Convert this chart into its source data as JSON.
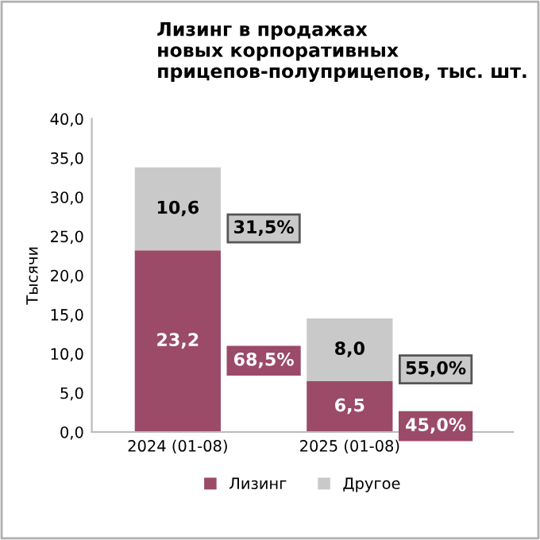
{
  "chart_data": {
    "type": "bar",
    "title": "Лизинг в продажах\nновых корпоративных\nприцепов-полуприцепов, тыс. шт.",
    "ylabel": "Тысячи",
    "categories": [
      "2024 (01-08)",
      "2025 (01-08)"
    ],
    "stacked": true,
    "series": [
      {
        "name": "Лизинг",
        "color": "#9b4a68",
        "values": [
          23.2,
          6.5
        ],
        "value_labels": [
          "23,2",
          "6,5"
        ]
      },
      {
        "name": "Другое",
        "color": "#c9c9c9",
        "values": [
          10.6,
          8.0
        ],
        "value_labels": [
          "10,6",
          "8,0"
        ]
      }
    ],
    "ylim": [
      0,
      40
    ],
    "yticks": [
      {
        "value": 0,
        "label": "0,0"
      },
      {
        "value": 5,
        "label": "5,0"
      },
      {
        "value": 10,
        "label": "10,0"
      },
      {
        "value": 15,
        "label": "15,0"
      },
      {
        "value": 20,
        "label": "20,0"
      },
      {
        "value": 25,
        "label": "25,0"
      },
      {
        "value": 30,
        "label": "30,0"
      },
      {
        "value": 35,
        "label": "35,0"
      },
      {
        "value": 40,
        "label": "40,0"
      }
    ],
    "annotations": [
      "68,5%",
      "31,5%",
      "45,0%",
      "55,0%"
    ],
    "legend": "bottom",
    "grid": false
  }
}
